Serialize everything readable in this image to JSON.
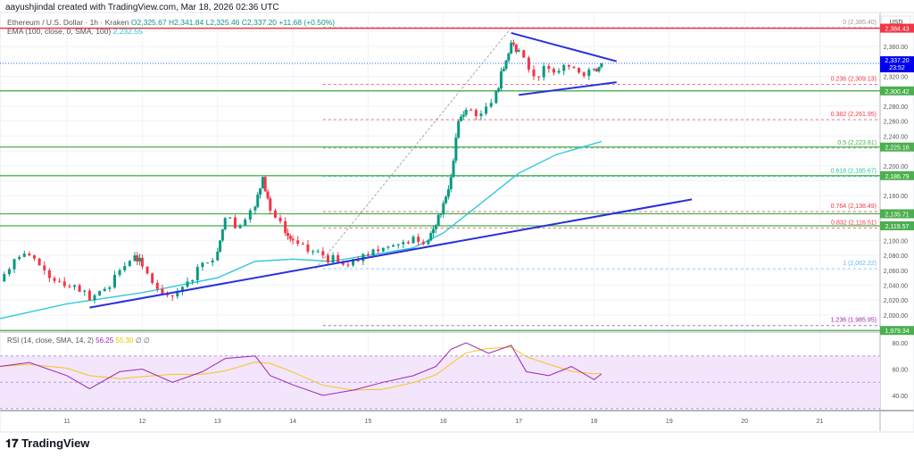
{
  "header": {
    "credit": "aayushjindal created with TradingView.com, Mar 18, 2026 02:36 UTC"
  },
  "legend": {
    "symbol": "Ethereum / U.S. Dollar · 1h · Kraken",
    "open": "O2,325.67",
    "high": "H2,341.84",
    "low": "L2,325.46",
    "close": "C2,337.20",
    "change": "+11.68 (+0.50%)",
    "ema_label": "EMA (100, close, 0, SMA, 100)",
    "ema_value": "2,232.55"
  },
  "rsi_legend": {
    "label": "RSI (14, close, SMA, 14, 2)",
    "rsi": "56.25",
    "sma": "55.30",
    "extra": "∅ ∅"
  },
  "axis": {
    "currency": "USD",
    "price_ticks": [
      "2,360.00",
      "2,320.00",
      "2,280.00",
      "2,260.00",
      "2,240.00",
      "2,200.00",
      "2,160.00",
      "2,100.00",
      "2,080.00",
      "2,060.00",
      "2,040.00",
      "2,020.00",
      "2,000.00"
    ],
    "rsi_ticks": [
      "80.00",
      "60.00",
      "40.00"
    ],
    "date_ticks": [
      "11",
      "12",
      "13",
      "14",
      "15",
      "16",
      "17",
      "18",
      "19",
      "20",
      "21"
    ]
  },
  "colors": {
    "up": "#089981",
    "down": "#f23645",
    "ema": "#26c6da",
    "trendline": "#2931d9",
    "green_level": "#4caf50",
    "red_level": "#f23645",
    "rsi": "#9c27b0",
    "rsi_sma": "#f5c518",
    "rsi_band": "#f3e5fc"
  },
  "chart_data": {
    "type": "candlestick",
    "xlim": [
      10.11,
      21.8
    ],
    "ylim": [
      1965,
      2395
    ],
    "price_points": [
      [
        10.1,
        2045
      ],
      [
        10.3,
        2075
      ],
      [
        10.5,
        2080
      ],
      [
        10.7,
        2060
      ],
      [
        10.9,
        2045
      ],
      [
        11.1,
        2040
      ],
      [
        11.3,
        2020
      ],
      [
        11.5,
        2035
      ],
      [
        11.7,
        2060
      ],
      [
        11.9,
        2080
      ],
      [
        12.0,
        2065
      ],
      [
        12.2,
        2035
      ],
      [
        12.4,
        2025
      ],
      [
        12.6,
        2045
      ],
      [
        12.8,
        2070
      ],
      [
        13.0,
        2085
      ],
      [
        13.1,
        2130
      ],
      [
        13.3,
        2120
      ],
      [
        13.5,
        2145
      ],
      [
        13.6,
        2185
      ],
      [
        13.7,
        2140
      ],
      [
        13.9,
        2110
      ],
      [
        14.0,
        2100
      ],
      [
        14.2,
        2085
      ],
      [
        14.4,
        2080
      ],
      [
        14.6,
        2070
      ],
      [
        14.8,
        2075
      ],
      [
        15.0,
        2080
      ],
      [
        15.2,
        2090
      ],
      [
        15.4,
        2095
      ],
      [
        15.6,
        2105
      ],
      [
        15.8,
        2100
      ],
      [
        15.9,
        2120
      ],
      [
        16.0,
        2150
      ],
      [
        16.1,
        2185
      ],
      [
        16.2,
        2260
      ],
      [
        16.3,
        2275
      ],
      [
        16.5,
        2270
      ],
      [
        16.7,
        2300
      ],
      [
        16.8,
        2330
      ],
      [
        16.9,
        2365
      ],
      [
        17.0,
        2355
      ],
      [
        17.2,
        2320
      ],
      [
        17.4,
        2330
      ],
      [
        17.6,
        2335
      ],
      [
        17.8,
        2325
      ],
      [
        18.0,
        2330
      ],
      [
        18.1,
        2337.2
      ]
    ],
    "ema": [
      [
        10.1,
        1995
      ],
      [
        11,
        2015
      ],
      [
        12,
        2030
      ],
      [
        13,
        2050
      ],
      [
        13.5,
        2072
      ],
      [
        14,
        2075
      ],
      [
        14.5,
        2072
      ],
      [
        15,
        2080
      ],
      [
        15.6,
        2090
      ],
      [
        16,
        2110
      ],
      [
        16.5,
        2150
      ],
      [
        17,
        2190
      ],
      [
        17.5,
        2215
      ],
      [
        18.1,
        2232.55
      ]
    ],
    "levels_green": [
      {
        "price": 2300.42,
        "label": "2,300.42"
      },
      {
        "price": 2225.16,
        "label": "2,225.16"
      },
      {
        "price": 2186.79,
        "label": "2,186.79"
      },
      {
        "price": 2135.71,
        "label": "2,135.71"
      },
      {
        "price": 2119.57,
        "label": "2,119.57"
      },
      {
        "price": 1979.34,
        "label": "1,979.34"
      }
    ],
    "level_red": {
      "price": 2384.43,
      "label": "2,384.43"
    },
    "last_price": {
      "price": 2337.2,
      "label": "2,337.20",
      "countdown": "23:52"
    },
    "fib": {
      "start": 14.4,
      "levels": [
        {
          "label": "0 (2,385.40)",
          "price": 2385.4,
          "color": "#999999"
        },
        {
          "label": "0.236 (2,309.13)",
          "price": 2309.13,
          "color": "#f23645"
        },
        {
          "label": "0.382 (2,261.95)",
          "price": 2261.95,
          "color": "#f23645"
        },
        {
          "label": "0.5 (2,223.81)",
          "price": 2223.81,
          "color": "#4caf50"
        },
        {
          "label": "0.618 (2,185.67)",
          "price": 2185.67,
          "color": "#26c6a0"
        },
        {
          "label": "0.764 (2,138.49)",
          "price": 2138.49,
          "color": "#f23645"
        },
        {
          "label": "0.832 (2,116.51)",
          "price": 2116.51,
          "color": "#f23645"
        },
        {
          "label": "1 (2,062.22)",
          "price": 2062.22,
          "color": "#64b5f6"
        },
        {
          "label": "1.236 (1,985.95)",
          "price": 1985.95,
          "color": "#9c27b0"
        }
      ]
    },
    "trendlines": [
      [
        [
          11.3,
          2010
        ],
        [
          19.3,
          2155
        ]
      ],
      [
        [
          16.9,
          2378
        ],
        [
          18.3,
          2340
        ]
      ],
      [
        [
          17.0,
          2295
        ],
        [
          18.3,
          2312
        ]
      ]
    ],
    "rsi": {
      "ylim": [
        25,
        95
      ],
      "band": [
        30,
        70
      ],
      "values": [
        [
          10.1,
          62
        ],
        [
          10.5,
          65
        ],
        [
          11,
          55
        ],
        [
          11.3,
          45
        ],
        [
          11.7,
          58
        ],
        [
          12,
          60
        ],
        [
          12.4,
          50
        ],
        [
          12.8,
          58
        ],
        [
          13.1,
          68
        ],
        [
          13.5,
          70
        ],
        [
          13.7,
          55
        ],
        [
          14,
          48
        ],
        [
          14.4,
          40
        ],
        [
          14.8,
          44
        ],
        [
          15.2,
          50
        ],
        [
          15.6,
          55
        ],
        [
          15.9,
          62
        ],
        [
          16.1,
          75
        ],
        [
          16.3,
          80
        ],
        [
          16.6,
          72
        ],
        [
          16.9,
          78
        ],
        [
          17.1,
          58
        ],
        [
          17.4,
          55
        ],
        [
          17.7,
          62
        ],
        [
          18.0,
          52
        ],
        [
          18.1,
          56.25
        ]
      ]
    }
  },
  "footer": {
    "brand": "TradingView"
  }
}
